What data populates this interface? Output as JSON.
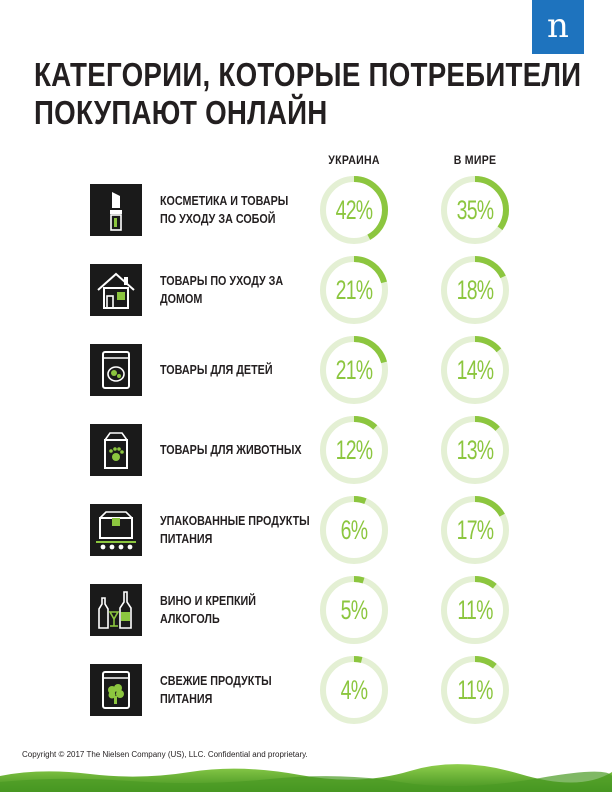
{
  "brand": {
    "letter": "n",
    "color": "#1e73be"
  },
  "title": {
    "line1": "КАТЕГОРИИ, КОТОРЫЕ ПОТРЕБИТЕЛИ",
    "line2": "ПОКУПАЮТ ОНЛАЙН"
  },
  "columns": {
    "ukraine": "УКРАИНА",
    "world": "В МИРЕ"
  },
  "accent_color": "#8cc63f",
  "track_color": "#e4f0d4",
  "categories": [
    {
      "icon": "lipstick-icon",
      "line1": "КОСМЕТИКА И ТОВАРЫ",
      "line2": "ПО УХОДУ ЗА СОБОЙ",
      "ukraine": 42,
      "ukraine_label": "42%",
      "world": 35,
      "world_label": "35%"
    },
    {
      "icon": "house-icon",
      "line1": "ТОВАРЫ ПО УХОДУ ЗА",
      "line2": "ДОМОМ",
      "ukraine": 21,
      "ukraine_label": "21%",
      "world": 18,
      "world_label": "18%"
    },
    {
      "icon": "baby-food-icon",
      "line1": "ТОВАРЫ ДЛЯ ДЕТЕЙ",
      "line2": "",
      "ukraine": 21,
      "ukraine_label": "21%",
      "world": 14,
      "world_label": "14%"
    },
    {
      "icon": "pet-food-icon",
      "line1": "ТОВАРЫ ДЛЯ ЖИВОТНЫХ",
      "line2": "",
      "ukraine": 12,
      "ukraine_label": "12%",
      "world": 13,
      "world_label": "13%"
    },
    {
      "icon": "package-conveyor-icon",
      "line1": "УПАКОВАННЫЕ ПРОДУКТЫ",
      "line2": "ПИТАНИЯ",
      "ukraine": 6,
      "ukraine_label": "6%",
      "world": 17,
      "world_label": "17%"
    },
    {
      "icon": "wine-bottles-icon",
      "line1": "ВИНО И КРЕПКИЙ",
      "line2": "АЛКОГОЛЬ",
      "ukraine": 5,
      "ukraine_label": "5%",
      "world": 11,
      "world_label": "11%"
    },
    {
      "icon": "fresh-produce-icon",
      "line1": "СВЕЖИЕ ПРОДУКТЫ",
      "line2": "ПИТАНИЯ",
      "ukraine": 4,
      "ukraine_label": "4%",
      "world": 11,
      "world_label": "11%"
    }
  ],
  "footer": "Copyright © 2017 The Nielsen Company (US), LLC. Confidential and proprietary."
}
